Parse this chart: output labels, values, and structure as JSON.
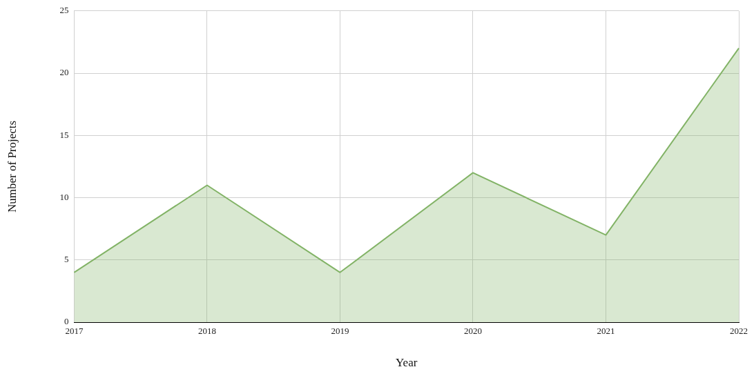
{
  "chart_data": {
    "type": "area",
    "xlabel": "Year",
    "ylabel": "Number of Projects",
    "categories": [
      "2017",
      "2018",
      "2019",
      "2020",
      "2021",
      "2022"
    ],
    "series": [
      {
        "color": "#82b366",
        "values": [
          4,
          11,
          4,
          12,
          7,
          22
        ]
      }
    ],
    "ylim": [
      0,
      25
    ],
    "yticks": [
      0,
      5,
      10,
      15,
      20,
      25
    ],
    "grid": true,
    "legend": false,
    "marker": "none"
  }
}
